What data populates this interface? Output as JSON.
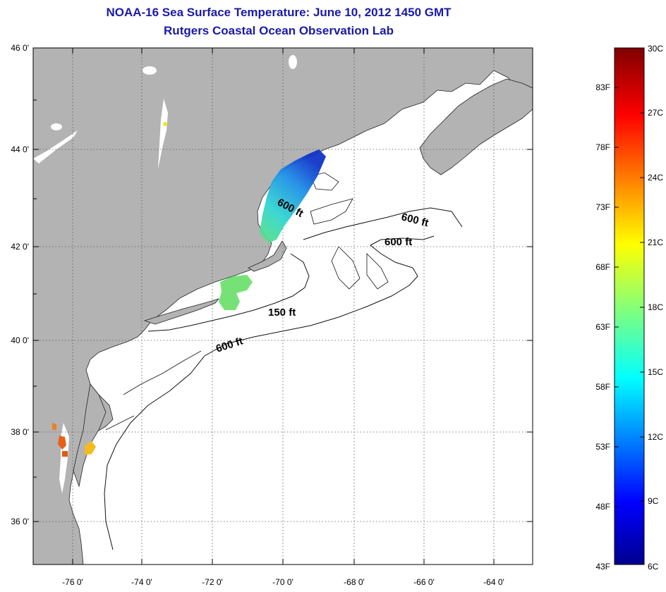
{
  "header": {
    "title": "NOAA-16 Sea Surface Temperature:  June 10, 2012 1450 GMT",
    "subtitle": "Rutgers Coastal Ocean Observation Lab"
  },
  "map": {
    "lat_labels": [
      "46 0'",
      "44 0'",
      "42 0'",
      "40 0'",
      "38 0'",
      "36 0'"
    ],
    "lon_labels": [
      "-76 0'",
      "-74 0'",
      "-72 0'",
      "-70 0'",
      "-68 0'",
      "-66 0'",
      "-64 0'"
    ],
    "depth_labels": [
      "600 ft",
      "600 ft",
      "600 ft",
      "150 ft",
      "600 ft"
    ],
    "colors": {
      "land": "#b3b3b3",
      "ocean": "#ffffff",
      "grid": "#555555"
    }
  },
  "colorbar": {
    "fahrenheit_labels": [
      "83F",
      "78F",
      "73F",
      "68F",
      "63F",
      "58F",
      "53F",
      "48F",
      "43F"
    ],
    "celsius_labels": [
      "30C",
      "27C",
      "24C",
      "21C",
      "18C",
      "15C",
      "12C",
      "9C",
      "6C"
    ]
  }
}
